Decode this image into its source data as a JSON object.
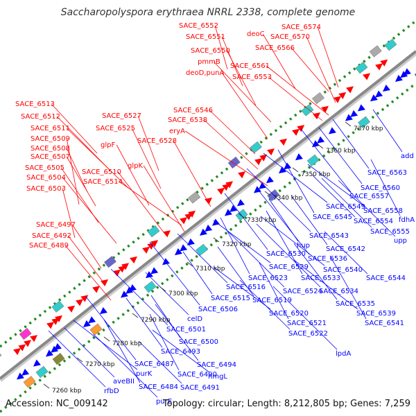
{
  "title": "Saccharopolyspora erythraea NRRL 2338, complete genome",
  "footer": {
    "accession": "Accession: NC_009142",
    "stats": "Topology: circular; Length: 8,212,805 bp; Genes: 7,259"
  },
  "colors": {
    "forward_gene": "#ff0000",
    "reverse_gene": "#0000ff",
    "backbone": "#999999",
    "gc_dots": "#228B22",
    "cyan_feature": "#33cccc",
    "purple_feature": "#6666cc",
    "orange_feature": "#ff9933",
    "olive_feature": "#888833",
    "pink_feature": "#ff33cc",
    "gray_feature": "#aaaaaa"
  },
  "scale_ticks": [
    "7260 kbp",
    "7270 kbp",
    "7280 kbp",
    "7290 kbp",
    "7300 kbp",
    "7310 kbp",
    "7320 kbp",
    "7330 kbp",
    "7340 kbp",
    "7350 kbp",
    "7360 kbp",
    "7370 kbp"
  ],
  "forward_labels": [
    "SACE_6552",
    "SACE_6551",
    "SACE_6550",
    "pmmB",
    "deoD,punA",
    "SACE_6553",
    "SACE_6561",
    "deoC",
    "SACE_6574",
    "SACE_6570",
    "SACE_6566",
    "SACE_6513",
    "SACE_6512",
    "SACE_6511",
    "SACE_6509",
    "SACE_6508",
    "SACE_6507",
    "SACE_6505",
    "SACE_6510",
    "SACE_6504",
    "SACE_6514",
    "SACE_6503",
    "SACE_6527",
    "SACE_6525",
    "SACE_6528",
    "SACE_6546",
    "SACE_6538",
    "eryA",
    "glpF",
    "glpK",
    "SACE_6497",
    "SACE_6492",
    "SACE_6489"
  ],
  "reverse_labels": [
    "add",
    "SACE_6563",
    "SACE_6560",
    "SACE_6557",
    "SACE_6558",
    "SACE_6549",
    "fdhA",
    "SACE_6545",
    "SACE_6554",
    "SACE_6555",
    "upp",
    "SACE_6543",
    "hup",
    "SACE_6542",
    "SACE_6530",
    "SACE_6536",
    "SACE_6529",
    "SACE_6540",
    "SACE_6523",
    "SACE_6533",
    "SACE_6544",
    "SACE_6516",
    "SACE_6524",
    "SACE_6534",
    "SACE_6515",
    "SACE_6519",
    "SACE_6535",
    "SACE_6506",
    "SACE_6520",
    "SACE_6539",
    "SACE_6521",
    "SACE_6541",
    "celD",
    "SACE_6522",
    "SACE_6501",
    "lpdA",
    "SACE_6500",
    "SACE_6493",
    "SACE_6494",
    "SACE_6487",
    "hmgL",
    "purK",
    "SACE_6490",
    "SACE_6484",
    "SACE_6491",
    "aveBII",
    "rfbD",
    "purE"
  ]
}
